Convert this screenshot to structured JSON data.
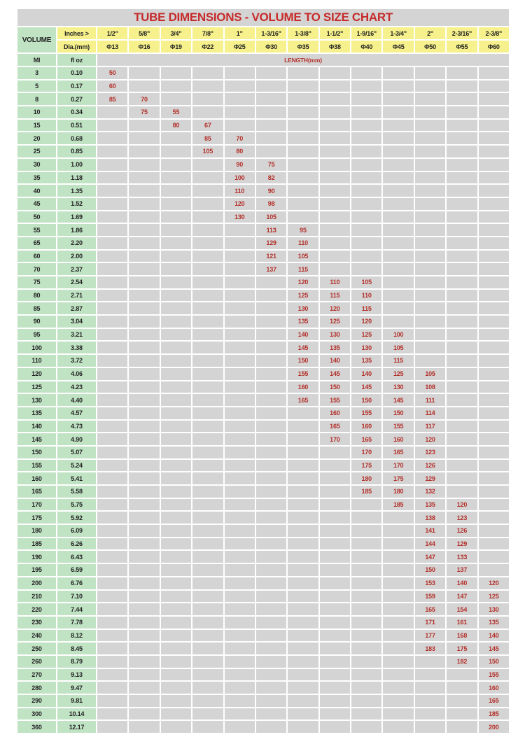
{
  "title": "TUBE DIMENSIONS - VOLUME TO SIZE CHART",
  "header": {
    "volume": "VOLUME",
    "inches_label": "Inches >",
    "dia_label": "Dia.(mm)",
    "ml_label": "Ml",
    "floz_label": "fl oz",
    "length_label": "LENGTH(mm)",
    "inches": [
      "1/2\"",
      "5/8\"",
      "3/4\"",
      "7/8\"",
      "1\"",
      "1-3/16\"",
      "1-3/8\"",
      "1-1/2\"",
      "1-9/16\"",
      "1-3/4\"",
      "2\"",
      "2-3/16\"",
      "2-3/8\""
    ],
    "dia": [
      "Φ13",
      "Φ16",
      "Φ19",
      "Φ22",
      "Φ25",
      "Φ30",
      "Φ35",
      "Φ38",
      "Φ40",
      "Φ45",
      "Φ50",
      "Φ55",
      "Φ60"
    ]
  },
  "colors": {
    "header_green": "#c0e3c4",
    "header_yellow": "#f6f18c",
    "cell_gray": "#d4d4d4",
    "value_red": "#b3302a"
  },
  "rows": [
    {
      "ml": "3",
      "floz": "0.10",
      "len": [
        "50",
        "",
        "",
        "",
        "",
        "",
        "",
        "",
        "",
        "",
        "",
        "",
        ""
      ]
    },
    {
      "ml": "5",
      "floz": "0.17",
      "len": [
        "60",
        "",
        "",
        "",
        "",
        "",
        "",
        "",
        "",
        "",
        "",
        "",
        ""
      ]
    },
    {
      "ml": "8",
      "floz": "0.27",
      "len": [
        "85",
        "70",
        "",
        "",
        "",
        "",
        "",
        "",
        "",
        "",
        "",
        "",
        ""
      ]
    },
    {
      "ml": "10",
      "floz": "0.34",
      "len": [
        "",
        "75",
        "55",
        "",
        "",
        "",
        "",
        "",
        "",
        "",
        "",
        "",
        ""
      ]
    },
    {
      "ml": "15",
      "floz": "0.51",
      "len": [
        "",
        "",
        "80",
        "67",
        "",
        "",
        "",
        "",
        "",
        "",
        "",
        "",
        ""
      ]
    },
    {
      "ml": "20",
      "floz": "0.68",
      "len": [
        "",
        "",
        "",
        "85",
        "70",
        "",
        "",
        "",
        "",
        "",
        "",
        "",
        ""
      ]
    },
    {
      "ml": "25",
      "floz": "0.85",
      "len": [
        "",
        "",
        "",
        "105",
        "80",
        "",
        "",
        "",
        "",
        "",
        "",
        "",
        ""
      ]
    },
    {
      "ml": "30",
      "floz": "1.00",
      "len": [
        "",
        "",
        "",
        "",
        "90",
        "75",
        "",
        "",
        "",
        "",
        "",
        "",
        ""
      ]
    },
    {
      "ml": "35",
      "floz": "1.18",
      "len": [
        "",
        "",
        "",
        "",
        "100",
        "82",
        "",
        "",
        "",
        "",
        "",
        "",
        ""
      ]
    },
    {
      "ml": "40",
      "floz": "1.35",
      "len": [
        "",
        "",
        "",
        "",
        "110",
        "90",
        "",
        "",
        "",
        "",
        "",
        "",
        ""
      ]
    },
    {
      "ml": "45",
      "floz": "1.52",
      "len": [
        "",
        "",
        "",
        "",
        "120",
        "98",
        "",
        "",
        "",
        "",
        "",
        "",
        ""
      ]
    },
    {
      "ml": "50",
      "floz": "1.69",
      "len": [
        "",
        "",
        "",
        "",
        "130",
        "105",
        "",
        "",
        "",
        "",
        "",
        "",
        ""
      ]
    },
    {
      "ml": "55",
      "floz": "1.86",
      "len": [
        "",
        "",
        "",
        "",
        "",
        "113",
        "95",
        "",
        "",
        "",
        "",
        "",
        ""
      ]
    },
    {
      "ml": "65",
      "floz": "2.20",
      "len": [
        "",
        "",
        "",
        "",
        "",
        "129",
        "110",
        "",
        "",
        "",
        "",
        "",
        ""
      ]
    },
    {
      "ml": "60",
      "floz": "2.00",
      "len": [
        "",
        "",
        "",
        "",
        "",
        "121",
        "105",
        "",
        "",
        "",
        "",
        "",
        ""
      ]
    },
    {
      "ml": "70",
      "floz": "2.37",
      "len": [
        "",
        "",
        "",
        "",
        "",
        "137",
        "115",
        "",
        "",
        "",
        "",
        "",
        ""
      ]
    },
    {
      "ml": "75",
      "floz": "2.54",
      "len": [
        "",
        "",
        "",
        "",
        "",
        "",
        "120",
        "110",
        "105",
        "",
        "",
        "",
        ""
      ]
    },
    {
      "ml": "80",
      "floz": "2.71",
      "len": [
        "",
        "",
        "",
        "",
        "",
        "",
        "125",
        "115",
        "110",
        "",
        "",
        "",
        ""
      ]
    },
    {
      "ml": "85",
      "floz": "2.87",
      "len": [
        "",
        "",
        "",
        "",
        "",
        "",
        "130",
        "120",
        "115",
        "",
        "",
        "",
        ""
      ]
    },
    {
      "ml": "90",
      "floz": "3.04",
      "len": [
        "",
        "",
        "",
        "",
        "",
        "",
        "135",
        "125",
        "120",
        "",
        "",
        "",
        ""
      ]
    },
    {
      "ml": "95",
      "floz": "3.21",
      "len": [
        "",
        "",
        "",
        "",
        "",
        "",
        "140",
        "130",
        "125",
        "100",
        "",
        "",
        ""
      ]
    },
    {
      "ml": "100",
      "floz": "3.38",
      "len": [
        "",
        "",
        "",
        "",
        "",
        "",
        "145",
        "135",
        "130",
        "105",
        "",
        "",
        ""
      ]
    },
    {
      "ml": "110",
      "floz": "3.72",
      "len": [
        "",
        "",
        "",
        "",
        "",
        "",
        "150",
        "140",
        "135",
        "115",
        "",
        "",
        ""
      ]
    },
    {
      "ml": "120",
      "floz": "4.06",
      "len": [
        "",
        "",
        "",
        "",
        "",
        "",
        "155",
        "145",
        "140",
        "125",
        "105",
        "",
        ""
      ]
    },
    {
      "ml": "125",
      "floz": "4.23",
      "len": [
        "",
        "",
        "",
        "",
        "",
        "",
        "160",
        "150",
        "145",
        "130",
        "108",
        "",
        ""
      ]
    },
    {
      "ml": "130",
      "floz": "4.40",
      "len": [
        "",
        "",
        "",
        "",
        "",
        "",
        "165",
        "155",
        "150",
        "145",
        "111",
        "",
        ""
      ]
    },
    {
      "ml": "135",
      "floz": "4.57",
      "len": [
        "",
        "",
        "",
        "",
        "",
        "",
        "",
        "160",
        "155",
        "150",
        "114",
        "",
        ""
      ]
    },
    {
      "ml": "140",
      "floz": "4.73",
      "len": [
        "",
        "",
        "",
        "",
        "",
        "",
        "",
        "165",
        "160",
        "155",
        "117",
        "",
        ""
      ]
    },
    {
      "ml": "145",
      "floz": "4.90",
      "len": [
        "",
        "",
        "",
        "",
        "",
        "",
        "",
        "170",
        "165",
        "160",
        "120",
        "",
        ""
      ]
    },
    {
      "ml": "150",
      "floz": "5.07",
      "len": [
        "",
        "",
        "",
        "",
        "",
        "",
        "",
        "",
        "170",
        "165",
        "123",
        "",
        ""
      ]
    },
    {
      "ml": "155",
      "floz": "5.24",
      "len": [
        "",
        "",
        "",
        "",
        "",
        "",
        "",
        "",
        "175",
        "170",
        "126",
        "",
        ""
      ]
    },
    {
      "ml": "160",
      "floz": "5.41",
      "len": [
        "",
        "",
        "",
        "",
        "",
        "",
        "",
        "",
        "180",
        "175",
        "129",
        "",
        ""
      ]
    },
    {
      "ml": "165",
      "floz": "5.58",
      "len": [
        "",
        "",
        "",
        "",
        "",
        "",
        "",
        "",
        "185",
        "180",
        "132",
        "",
        ""
      ]
    },
    {
      "ml": "170",
      "floz": "5.75",
      "len": [
        "",
        "",
        "",
        "",
        "",
        "",
        "",
        "",
        "",
        "185",
        "135",
        "120",
        ""
      ]
    },
    {
      "ml": "175",
      "floz": "5.92",
      "len": [
        "",
        "",
        "",
        "",
        "",
        "",
        "",
        "",
        "",
        "",
        "138",
        "123",
        ""
      ]
    },
    {
      "ml": "180",
      "floz": "6.09",
      "len": [
        "",
        "",
        "",
        "",
        "",
        "",
        "",
        "",
        "",
        "",
        "141",
        "126",
        ""
      ]
    },
    {
      "ml": "185",
      "floz": "6.26",
      "len": [
        "",
        "",
        "",
        "",
        "",
        "",
        "",
        "",
        "",
        "",
        "144",
        "129",
        ""
      ]
    },
    {
      "ml": "190",
      "floz": "6.43",
      "len": [
        "",
        "",
        "",
        "",
        "",
        "",
        "",
        "",
        "",
        "",
        "147",
        "133",
        ""
      ]
    },
    {
      "ml": "195",
      "floz": "6.59",
      "len": [
        "",
        "",
        "",
        "",
        "",
        "",
        "",
        "",
        "",
        "",
        "150",
        "137",
        ""
      ]
    },
    {
      "ml": "200",
      "floz": "6.76",
      "len": [
        "",
        "",
        "",
        "",
        "",
        "",
        "",
        "",
        "",
        "",
        "153",
        "140",
        "120"
      ]
    },
    {
      "ml": "210",
      "floz": "7.10",
      "len": [
        "",
        "",
        "",
        "",
        "",
        "",
        "",
        "",
        "",
        "",
        "159",
        "147",
        "125"
      ]
    },
    {
      "ml": "220",
      "floz": "7.44",
      "len": [
        "",
        "",
        "",
        "",
        "",
        "",
        "",
        "",
        "",
        "",
        "165",
        "154",
        "130"
      ]
    },
    {
      "ml": "230",
      "floz": "7.78",
      "len": [
        "",
        "",
        "",
        "",
        "",
        "",
        "",
        "",
        "",
        "",
        "171",
        "161",
        "135"
      ]
    },
    {
      "ml": "240",
      "floz": "8.12",
      "len": [
        "",
        "",
        "",
        "",
        "",
        "",
        "",
        "",
        "",
        "",
        "177",
        "168",
        "140"
      ]
    },
    {
      "ml": "250",
      "floz": "8.45",
      "len": [
        "",
        "",
        "",
        "",
        "",
        "",
        "",
        "",
        "",
        "",
        "183",
        "175",
        "145"
      ]
    },
    {
      "ml": "260",
      "floz": "8.79",
      "len": [
        "",
        "",
        "",
        "",
        "",
        "",
        "",
        "",
        "",
        "",
        "",
        "182",
        "150"
      ]
    },
    {
      "ml": "270",
      "floz": "9.13",
      "len": [
        "",
        "",
        "",
        "",
        "",
        "",
        "",
        "",
        "",
        "",
        "",
        "",
        "155"
      ]
    },
    {
      "ml": "280",
      "floz": "9.47",
      "len": [
        "",
        "",
        "",
        "",
        "",
        "",
        "",
        "",
        "",
        "",
        "",
        "",
        "160"
      ]
    },
    {
      "ml": "290",
      "floz": "9.81",
      "len": [
        "",
        "",
        "",
        "",
        "",
        "",
        "",
        "",
        "",
        "",
        "",
        "",
        "165"
      ]
    },
    {
      "ml": "300",
      "floz": "10.14",
      "len": [
        "",
        "",
        "",
        "",
        "",
        "",
        "",
        "",
        "",
        "",
        "",
        "",
        "185"
      ]
    },
    {
      "ml": "360",
      "floz": "12.17",
      "len": [
        "",
        "",
        "",
        "",
        "",
        "",
        "",
        "",
        "",
        "",
        "",
        "",
        "200"
      ]
    }
  ]
}
